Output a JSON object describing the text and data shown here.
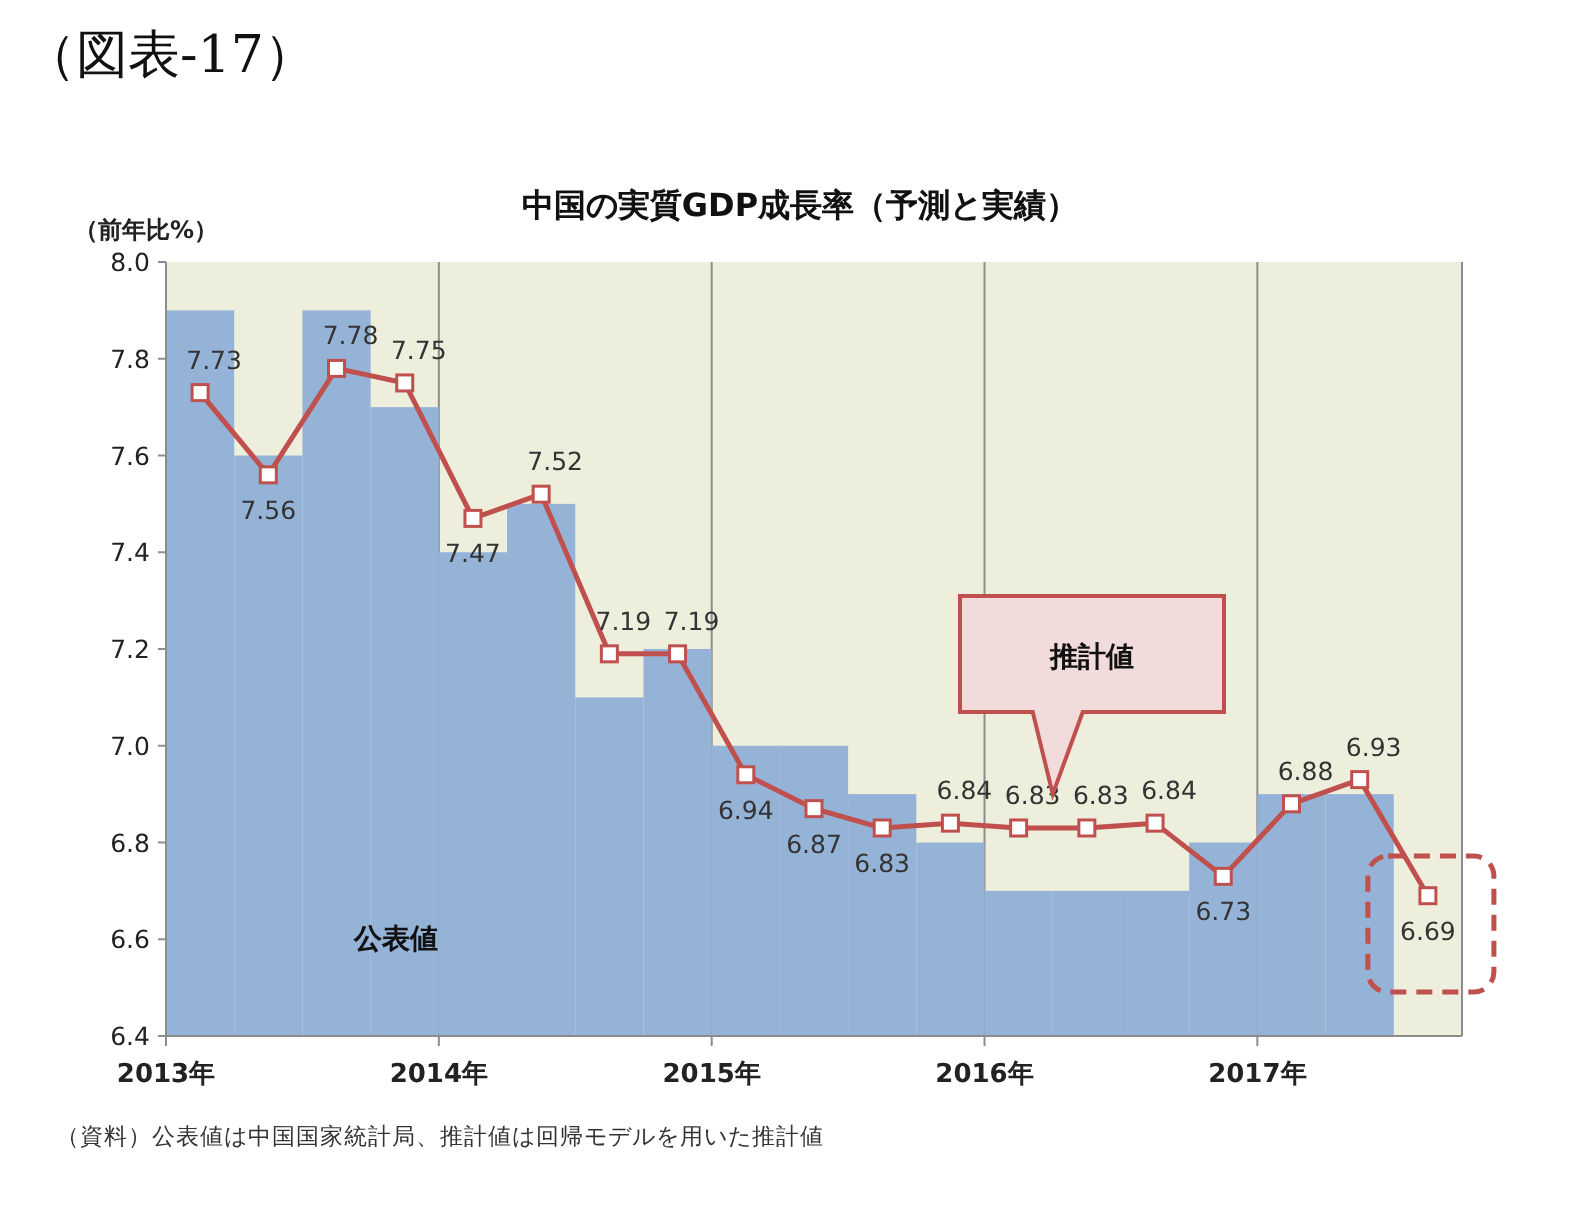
{
  "chart_data": {
    "type": "bar",
    "title": "中国の実質GDP成長率（予測と実績）",
    "ylabel": "（前年比%）",
    "annotations": [
      "（図表-17）",
      "公表値",
      "推計値",
      "（資料）公表値は中国国家統計局、推計値は回帰モデルを用いた推計値"
    ],
    "x": [
      2013.125,
      2013.375,
      2013.625,
      2013.875,
      2014.125,
      2014.375,
      2014.625,
      2014.875,
      2015.125,
      2015.375,
      2015.625,
      2015.875,
      2016.125,
      2016.375,
      2016.625,
      2016.875,
      2017.125,
      2017.375,
      2017.625
    ],
    "series": [
      {
        "color": "#95b3d7",
        "values": [
          7.9,
          7.6,
          7.9,
          7.7,
          7.4,
          7.5,
          7.1,
          7.2,
          7.0,
          7.0,
          6.9,
          6.8,
          6.7,
          6.7,
          6.7,
          6.8,
          6.9,
          6.9,
          null
        ]
      },
      {
        "type": "line",
        "color": "#c0504d",
        "marker": "square",
        "values": [
          7.73,
          7.56,
          7.78,
          7.75,
          7.47,
          7.52,
          7.19,
          7.19,
          6.94,
          6.87,
          6.83,
          6.84,
          6.83,
          6.83,
          6.84,
          6.73,
          6.88,
          6.93,
          6.69
        ],
        "value_labels": [
          "7.73",
          "7.56",
          "7.78",
          "7.75",
          "7.47",
          "7.52",
          "7.19",
          "7.19",
          "6.94",
          "6.87",
          "6.83",
          "6.84",
          "6.83",
          "6.83",
          "6.84",
          "6.73",
          "6.88",
          "6.93",
          "6.69"
        ]
      }
    ],
    "xlim": [
      2013,
      2017.75
    ],
    "xticks": [
      {
        "value": 2013,
        "label": "2013年"
      },
      {
        "value": 2014,
        "label": "2014年"
      },
      {
        "value": 2015,
        "label": "2015年"
      },
      {
        "value": 2016,
        "label": "2016年"
      },
      {
        "value": 2017,
        "label": "2017年"
      }
    ],
    "ylim": [
      6.4,
      8.0
    ],
    "yticks": [
      {
        "value": 6.4,
        "label": "6.4"
      },
      {
        "value": 6.6,
        "label": "6.6"
      },
      {
        "value": 6.8,
        "label": "6.8"
      },
      {
        "value": 7.0,
        "label": "7.0"
      },
      {
        "value": 7.2,
        "label": "7.2"
      },
      {
        "value": 7.4,
        "label": "7.4"
      },
      {
        "value": 7.6,
        "label": "7.6"
      },
      {
        "value": 7.8,
        "label": "7.8"
      },
      {
        "value": 8.0,
        "label": "8.0"
      }
    ],
    "grid": "x"
  }
}
